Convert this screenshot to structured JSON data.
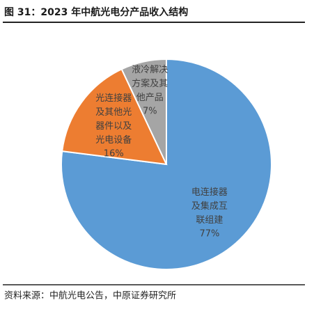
{
  "chart_data": {
    "type": "pie",
    "title": "图 31：2023 年中航光电分产品收入结构",
    "categories": [
      "电连接器及集成互联组建",
      "光连接器及其他光器件以及光电设备",
      "液冷解决方案及其他产品"
    ],
    "values": [
      77,
      16,
      7
    ],
    "value_labels": [
      "77%",
      "16%",
      "7%"
    ],
    "colors": [
      "#5b9bd5",
      "#ed7d31",
      "#a5a5a5"
    ],
    "source": "资料来源：中航光电公告，中原证券研究所"
  }
}
